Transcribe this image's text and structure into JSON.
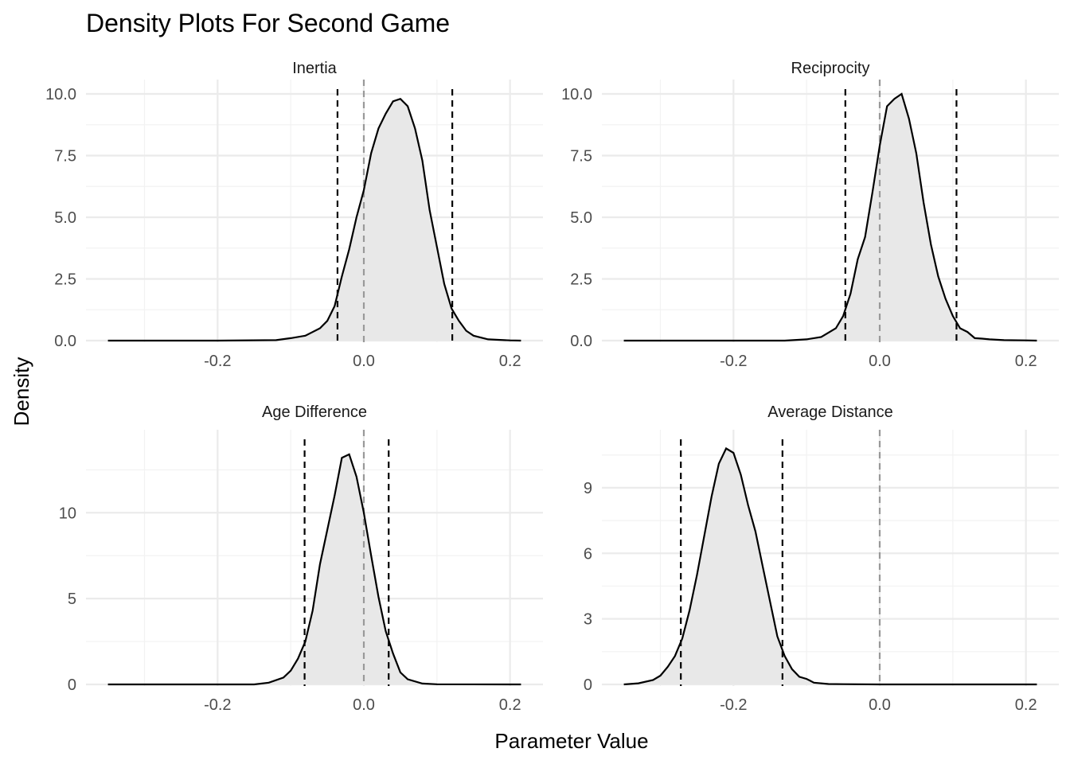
{
  "chart": {
    "title": "Density Plots For Second Game",
    "xlabel": "Parameter Value",
    "ylabel": "Density"
  },
  "chart_data": {
    "type": "area",
    "xlim": [
      -0.35,
      0.215
    ],
    "x_ticks": [
      -0.2,
      0.0,
      0.2
    ],
    "x_tick_labels": [
      "-0.2",
      "0.0",
      "0.2"
    ],
    "zero_reference": 0.0,
    "panels": [
      {
        "title": "Inertia",
        "ylim": [
          0,
          10.0
        ],
        "y_ticks": [
          0,
          2.5,
          5.0,
          7.5,
          10.0
        ],
        "y_tick_labels": [
          "0.0",
          "2.5",
          "5.0",
          "7.5",
          "10.0"
        ],
        "ci": [
          -0.036,
          0.121
        ],
        "x": [
          -0.35,
          -0.2,
          -0.12,
          -0.1,
          -0.08,
          -0.06,
          -0.05,
          -0.04,
          -0.03,
          -0.02,
          -0.01,
          0.0,
          0.01,
          0.02,
          0.03,
          0.04,
          0.05,
          0.06,
          0.07,
          0.08,
          0.09,
          0.1,
          0.11,
          0.12,
          0.13,
          0.14,
          0.15,
          0.17,
          0.2,
          0.215
        ],
        "y": [
          0,
          0,
          0.02,
          0.1,
          0.2,
          0.5,
          0.8,
          1.4,
          2.6,
          3.7,
          5.0,
          6.1,
          7.6,
          8.6,
          9.2,
          9.7,
          9.8,
          9.5,
          8.6,
          7.3,
          5.3,
          3.8,
          2.3,
          1.3,
          0.8,
          0.4,
          0.2,
          0.05,
          0.01,
          0
        ]
      },
      {
        "title": "Reciprocity",
        "ylim": [
          0,
          10.0
        ],
        "y_ticks": [
          0,
          2.5,
          5.0,
          7.5,
          10.0
        ],
        "y_tick_labels": [
          "0.0",
          "2.5",
          "5.0",
          "7.5",
          "10.0"
        ],
        "ci": [
          -0.047,
          0.105
        ],
        "x": [
          -0.35,
          -0.13,
          -0.1,
          -0.08,
          -0.06,
          -0.05,
          -0.04,
          -0.03,
          -0.02,
          -0.01,
          0.0,
          0.01,
          0.02,
          0.03,
          0.04,
          0.05,
          0.06,
          0.07,
          0.08,
          0.09,
          0.1,
          0.11,
          0.12,
          0.13,
          0.14,
          0.15,
          0.17,
          0.2,
          0.215
        ],
        "y": [
          0,
          0,
          0.05,
          0.15,
          0.5,
          1.0,
          1.9,
          3.3,
          4.2,
          6.0,
          7.9,
          9.5,
          9.8,
          10.0,
          9.0,
          7.6,
          5.6,
          3.9,
          2.6,
          1.7,
          1.0,
          0.5,
          0.35,
          0.1,
          0.08,
          0.05,
          0.02,
          0.01,
          0
        ]
      },
      {
        "title": "Age Difference",
        "ylim": [
          0,
          14.0
        ],
        "y_ticks": [
          0,
          5,
          10
        ],
        "y_tick_labels": [
          "0",
          "5",
          "10"
        ],
        "ci": [
          -0.081,
          0.034
        ],
        "x": [
          -0.35,
          -0.15,
          -0.13,
          -0.11,
          -0.1,
          -0.09,
          -0.08,
          -0.07,
          -0.06,
          -0.05,
          -0.04,
          -0.03,
          -0.02,
          -0.01,
          0.0,
          0.01,
          0.02,
          0.03,
          0.04,
          0.05,
          0.06,
          0.08,
          0.1,
          0.215
        ],
        "y": [
          0,
          0,
          0.1,
          0.4,
          0.8,
          1.5,
          2.5,
          4.3,
          7.0,
          9.0,
          11.0,
          13.2,
          13.4,
          12.1,
          10.0,
          7.5,
          5.1,
          3.1,
          1.8,
          0.7,
          0.3,
          0.05,
          0.01,
          0
        ]
      },
      {
        "title": "Average Distance",
        "ylim": [
          0,
          11.0
        ],
        "y_ticks": [
          0,
          3,
          6,
          9
        ],
        "y_tick_labels": [
          "0",
          "3",
          "6",
          "9"
        ],
        "ci": [
          -0.272,
          -0.133
        ],
        "x": [
          -0.35,
          -0.33,
          -0.31,
          -0.3,
          -0.29,
          -0.28,
          -0.27,
          -0.26,
          -0.25,
          -0.24,
          -0.23,
          -0.22,
          -0.21,
          -0.2,
          -0.19,
          -0.18,
          -0.17,
          -0.16,
          -0.15,
          -0.14,
          -0.13,
          -0.12,
          -0.11,
          -0.1,
          -0.09,
          -0.07,
          -0.05,
          0.0,
          0.215
        ],
        "y": [
          0,
          0.05,
          0.2,
          0.4,
          0.8,
          1.3,
          2.1,
          3.4,
          5.0,
          6.8,
          8.6,
          10.1,
          10.8,
          10.6,
          9.6,
          8.2,
          7.0,
          5.4,
          3.8,
          2.2,
          1.3,
          0.7,
          0.35,
          0.25,
          0.08,
          0.02,
          0.01,
          0,
          0
        ]
      }
    ]
  }
}
